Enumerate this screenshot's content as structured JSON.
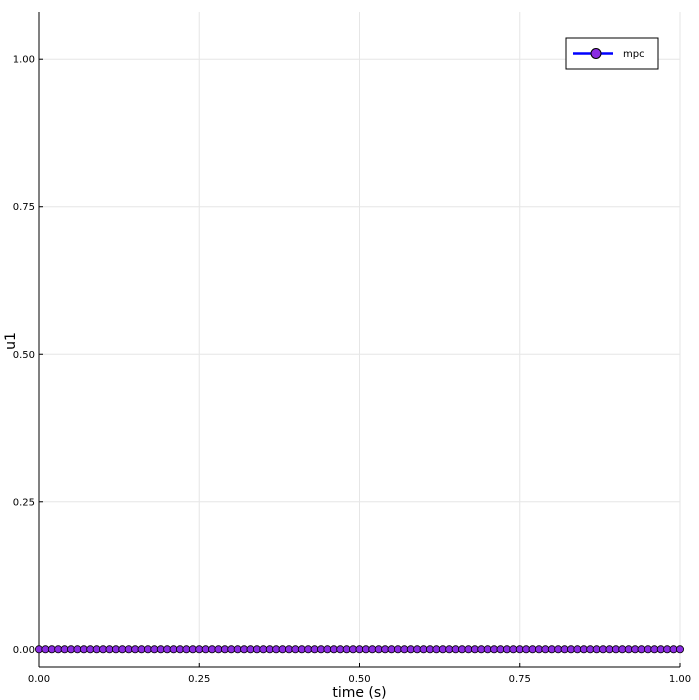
{
  "chart_data": {
    "type": "line",
    "title": "",
    "xlabel": "time (s)",
    "ylabel": "u1",
    "xlim": [
      0,
      1
    ],
    "ylim": [
      -0.03,
      1.08
    ],
    "xticks": [
      0,
      0.25,
      0.5,
      0.75,
      1
    ],
    "xtick_labels": [
      "0.00",
      "0.25",
      "0.50",
      "0.75",
      "1.00"
    ],
    "yticks": [
      0,
      0.25,
      0.5,
      0.75,
      1
    ],
    "ytick_labels": [
      "0.00",
      "0.25",
      "0.50",
      "0.75",
      "1.00"
    ],
    "grid": true,
    "legend_position": "top-right",
    "series": [
      {
        "name": "mpc",
        "line_color": "#0000ff",
        "marker": "circle",
        "marker_color": "#8a2be2",
        "marker_edge_color": "#000000",
        "x_start": 0,
        "x_end": 1,
        "x_step": 0.01,
        "y_constant": 0
      }
    ]
  }
}
